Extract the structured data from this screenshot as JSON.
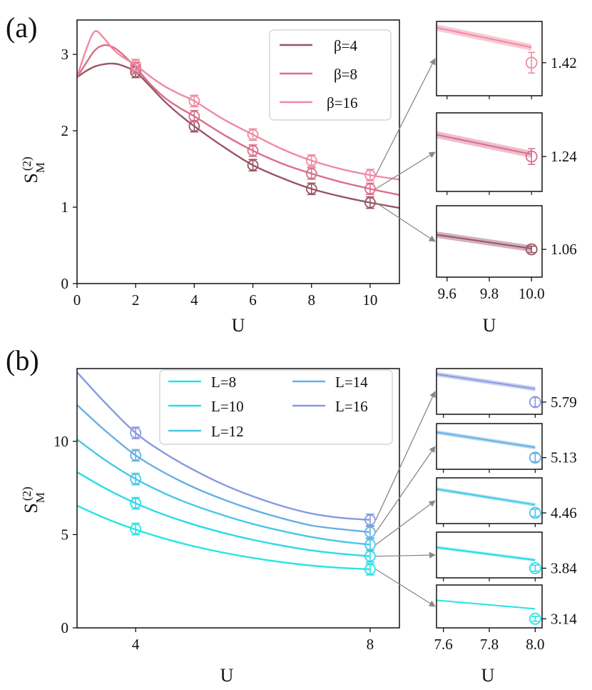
{
  "chart_data": [
    {
      "panel": "(a)",
      "type": "line",
      "xlabel": "U",
      "ylabel": "S_M^(2)",
      "xlim": [
        0,
        11
      ],
      "ylim": [
        0,
        3.45
      ],
      "xticks": [
        0,
        2,
        4,
        6,
        8,
        10
      ],
      "yticks": [
        0,
        1,
        2,
        3
      ],
      "legend": [
        "β=4",
        "β=8",
        "β=16"
      ],
      "series": [
        {
          "name": "β=4",
          "color": "#9a5566",
          "curve_x": [
            0,
            0.3,
            0.6,
            0.9,
            1.2,
            1.5,
            2,
            2.5,
            3,
            3.5,
            4,
            5,
            6,
            7,
            8,
            9,
            10,
            11
          ],
          "curve_y": [
            2.7,
            2.78,
            2.84,
            2.87,
            2.88,
            2.86,
            2.77,
            2.58,
            2.38,
            2.21,
            2.06,
            1.79,
            1.55,
            1.38,
            1.24,
            1.14,
            1.06,
            0.99
          ],
          "markers_x": [
            2,
            4,
            6,
            8,
            10
          ],
          "markers_y": [
            2.77,
            2.06,
            1.55,
            1.24,
            1.06
          ]
        },
        {
          "name": "β=8",
          "color": "#d86e8c",
          "curve_x": [
            0,
            0.3,
            0.6,
            0.9,
            1.2,
            1.5,
            2,
            2.5,
            3,
            3.5,
            4,
            5,
            6,
            7,
            8,
            9,
            10,
            11
          ],
          "curve_y": [
            2.7,
            2.88,
            3.05,
            3.12,
            3.1,
            3.02,
            2.83,
            2.61,
            2.43,
            2.3,
            2.19,
            1.95,
            1.74,
            1.57,
            1.44,
            1.33,
            1.24,
            1.16
          ],
          "markers_x": [
            2,
            4,
            6,
            8,
            10
          ],
          "markers_y": [
            2.82,
            2.19,
            1.74,
            1.44,
            1.24
          ]
        },
        {
          "name": "β=16",
          "color": "#f08aa2",
          "curve_x": [
            0,
            0.3,
            0.6,
            0.9,
            1.2,
            1.5,
            2,
            2.5,
            3,
            3.5,
            4,
            5,
            6,
            7,
            8,
            9,
            10,
            11
          ],
          "curve_y": [
            2.7,
            3.05,
            3.3,
            3.22,
            3.08,
            2.98,
            2.86,
            2.71,
            2.58,
            2.48,
            2.39,
            2.15,
            1.95,
            1.76,
            1.61,
            1.5,
            1.42,
            1.36
          ],
          "markers_x": [
            2,
            4,
            6,
            8,
            10
          ],
          "markers_y": [
            2.86,
            2.39,
            1.95,
            1.61,
            1.42
          ]
        }
      ],
      "insets": [
        {
          "value_label": "1.42",
          "color": "#f08aa2",
          "xlim": [
            9.55,
            10.05
          ],
          "ylim": [
            1.34,
            1.52
          ],
          "band_x": [
            9.55,
            10.0
          ],
          "band_y": [
            1.505,
            1.457
          ],
          "band_halfwidth": 0.008,
          "point": [
            10.0,
            1.42
          ],
          "err": 0.025
        },
        {
          "value_label": "1.24",
          "color": "#d86e8c",
          "xlim": [
            9.55,
            10.05
          ],
          "ylim": [
            1.16,
            1.34
          ],
          "band_x": [
            9.55,
            10.0
          ],
          "band_y": [
            1.29,
            1.245
          ],
          "band_halfwidth": 0.008,
          "point": [
            10.0,
            1.24
          ],
          "err": 0.018
        },
        {
          "value_label": "1.06",
          "color": "#9a5566",
          "xlim": [
            9.55,
            10.05
          ],
          "ylim": [
            0.99,
            1.17
          ],
          "band_x": [
            9.55,
            10.0
          ],
          "band_y": [
            1.097,
            1.062
          ],
          "band_halfwidth": 0.008,
          "point": [
            10.0,
            1.06
          ],
          "err": 0.008
        }
      ],
      "inset_xticks": [
        9.6,
        9.8,
        10.0
      ],
      "inset_xticklabels": [
        "9.6",
        "9.8",
        "10.0"
      ],
      "inset_xlabel": "U"
    },
    {
      "panel": "(b)",
      "type": "line",
      "xlabel": "U",
      "ylabel": "S_M^(2)",
      "xlim": [
        3.0,
        8.5
      ],
      "ylim": [
        0,
        13.9
      ],
      "xticks": [
        4,
        8
      ],
      "yticks": [
        0,
        5,
        10
      ],
      "legend": [
        "L=8",
        "L=10",
        "L=12",
        "L=14",
        "L=16"
      ],
      "series": [
        {
          "name": "L=8",
          "color": "#22e6e6",
          "curve_x": [
            3.0,
            3.5,
            4.0,
            4.5,
            5.0,
            5.5,
            6.0,
            6.5,
            7.0,
            7.5,
            8.0
          ],
          "curve_y": [
            6.55,
            5.85,
            5.27,
            4.78,
            4.37,
            4.03,
            3.75,
            3.52,
            3.34,
            3.22,
            3.14
          ],
          "markers_x": [
            4,
            8
          ],
          "markers_y": [
            5.3,
            3.14
          ]
        },
        {
          "name": "L=10",
          "color": "#2adbe8",
          "curve_x": [
            3.0,
            3.5,
            4.0,
            4.5,
            5.0,
            5.5,
            6.0,
            6.5,
            7.0,
            7.5,
            8.0
          ],
          "curve_y": [
            8.35,
            7.45,
            6.68,
            6.05,
            5.53,
            5.09,
            4.72,
            4.41,
            4.15,
            3.97,
            3.84
          ],
          "markers_x": [
            4,
            8
          ],
          "markers_y": [
            6.68,
            3.84
          ]
        },
        {
          "name": "L=12",
          "color": "#48c8e6",
          "curve_x": [
            3.0,
            3.5,
            4.0,
            4.5,
            5.0,
            5.5,
            6.0,
            6.5,
            7.0,
            7.5,
            8.0
          ],
          "curve_y": [
            10.1,
            8.95,
            7.98,
            7.2,
            6.56,
            6.03,
            5.57,
            5.19,
            4.87,
            4.63,
            4.46
          ],
          "markers_x": [
            4,
            8
          ],
          "markers_y": [
            7.98,
            4.46
          ]
        },
        {
          "name": "L=14",
          "color": "#68afe4",
          "curve_x": [
            3.0,
            3.5,
            4.0,
            4.5,
            5.0,
            5.5,
            6.0,
            6.5,
            7.0,
            7.5,
            8.0
          ],
          "curve_y": [
            11.95,
            10.52,
            9.25,
            8.3,
            7.52,
            6.88,
            6.33,
            5.87,
            5.49,
            5.29,
            5.13
          ],
          "markers_x": [
            4,
            8
          ],
          "markers_y": [
            9.25,
            5.13
          ]
        },
        {
          "name": "L=16",
          "color": "#8898e2",
          "curve_x": [
            3.0,
            3.5,
            4.0,
            4.5,
            5.0,
            5.5,
            6.0,
            6.5,
            7.0,
            7.5,
            8.0
          ],
          "curve_y": [
            13.7,
            12.0,
            10.45,
            9.35,
            8.45,
            7.68,
            7.05,
            6.53,
            6.13,
            5.9,
            5.79
          ],
          "markers_x": [
            4,
            8
          ],
          "markers_y": [
            10.45,
            5.79
          ]
        }
      ],
      "insets": [
        {
          "value_label": "5.79",
          "color": "#8898e2",
          "xlim": [
            7.57,
            8.03
          ],
          "ylim": [
            5.55,
            6.45
          ],
          "band_x": [
            7.57,
            8.0
          ],
          "band_y": [
            6.34,
            6.05
          ],
          "band_halfwidth": 0.045,
          "point": [
            8.0,
            5.79
          ],
          "err": 0.09
        },
        {
          "value_label": "5.13",
          "color": "#68afe4",
          "xlim": [
            7.57,
            8.03
          ],
          "ylim": [
            4.9,
            5.8
          ],
          "band_x": [
            7.57,
            8.0
          ],
          "band_y": [
            5.63,
            5.33
          ],
          "band_halfwidth": 0.04,
          "point": [
            8.0,
            5.13
          ],
          "err": 0.08
        },
        {
          "value_label": "4.46",
          "color": "#48c8e6",
          "xlim": [
            7.57,
            8.03
          ],
          "ylim": [
            4.25,
            5.15
          ],
          "band_x": [
            7.57,
            8.0
          ],
          "band_y": [
            4.93,
            4.62
          ],
          "band_halfwidth": 0.035,
          "point": [
            8.0,
            4.46
          ],
          "err": 0.07
        },
        {
          "value_label": "3.84",
          "color": "#2adbe8",
          "xlim": [
            7.57,
            8.03
          ],
          "ylim": [
            3.65,
            4.55
          ],
          "band_x": [
            7.57,
            8.0
          ],
          "band_y": [
            4.25,
            4.0
          ],
          "band_halfwidth": 0.03,
          "point": [
            8.0,
            3.84
          ],
          "err": 0.06
        },
        {
          "value_label": "3.14",
          "color": "#22e6e6",
          "xlim": [
            7.57,
            8.03
          ],
          "ylim": [
            2.95,
            3.85
          ],
          "band_x": [
            7.57,
            8.0
          ],
          "band_y": [
            3.53,
            3.35
          ],
          "band_halfwidth": 0.012,
          "point": [
            8.0,
            3.14
          ],
          "err": 0.05
        }
      ],
      "inset_xticks": [
        7.6,
        7.8,
        8.0
      ],
      "inset_xticklabels": [
        "7.6",
        "7.8",
        "8.0"
      ],
      "inset_xlabel": "U"
    }
  ]
}
